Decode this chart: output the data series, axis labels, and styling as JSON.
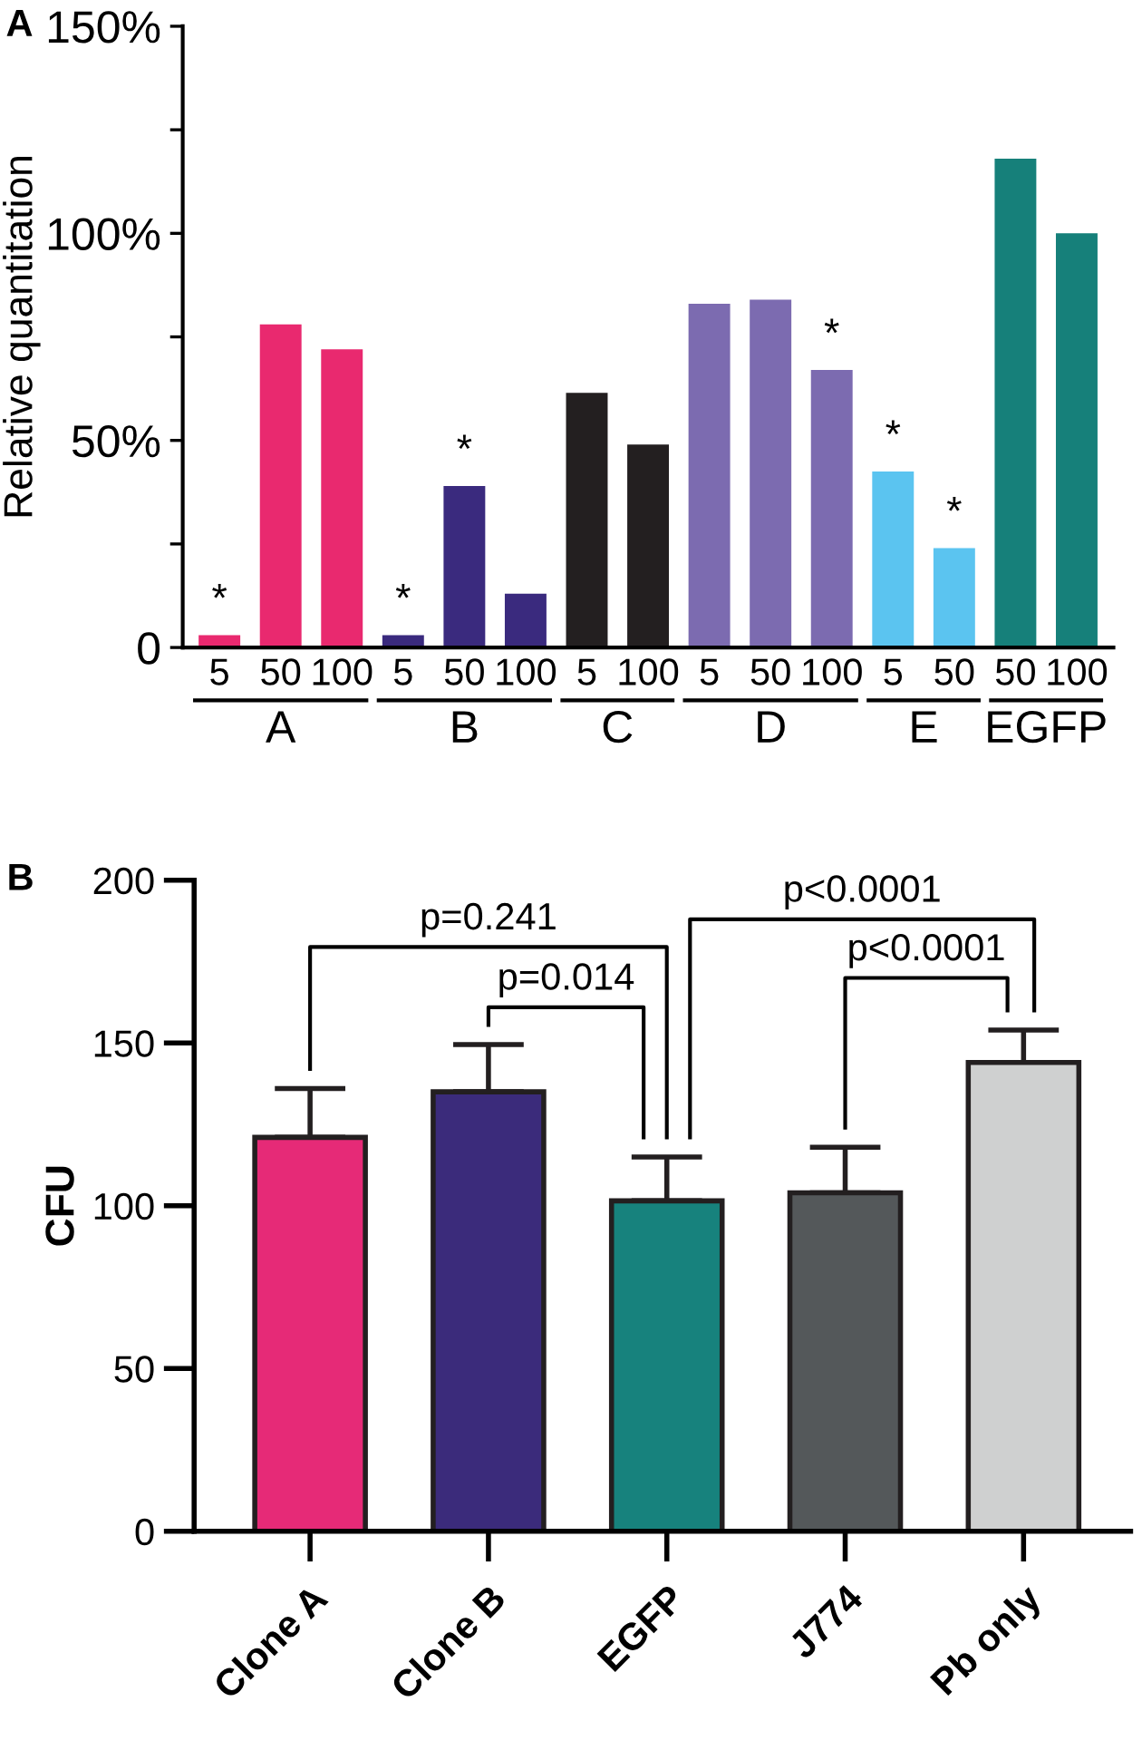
{
  "chart_data": [
    {
      "type": "bar",
      "title": "A",
      "ylabel": "Relative quantitation",
      "categories": [
        "5",
        "50",
        "100",
        "5",
        "50",
        "100",
        "5",
        "100",
        "5",
        "50",
        "100",
        "5",
        "50",
        "50",
        "100"
      ],
      "values": [
        3,
        78,
        72,
        3,
        39,
        13,
        61.5,
        49,
        83,
        84,
        67,
        42.5,
        24,
        118,
        100
      ],
      "colors": [
        "#e9296f",
        "#e9296f",
        "#e9296f",
        "#3a2a7e",
        "#3a2a7e",
        "#3a2a7e",
        "#231f20",
        "#231f20",
        "#7c6bb0",
        "#7c6bb0",
        "#7c6bb0",
        "#5bc4f0",
        "#5bc4f0",
        "#16807a",
        "#16807a"
      ],
      "value_labels": [
        "*",
        null,
        null,
        "*",
        "*",
        null,
        null,
        null,
        null,
        null,
        "*",
        "*",
        "*",
        null,
        null
      ],
      "annotations": [
        "A",
        "B",
        "C",
        "D",
        "E",
        "EGFP"
      ],
      "ylim": [
        0,
        150
      ],
      "yticks": [
        0,
        {
          "value": 25,
          "label": null
        },
        {
          "value": 50,
          "label": "50%"
        },
        {
          "value": 75,
          "label": null
        },
        {
          "value": 100,
          "label": "100%"
        },
        {
          "value": 125,
          "label": null
        },
        {
          "value": 150,
          "label": "150%"
        }
      ],
      "grid": false,
      "legend": false
    },
    {
      "type": "bar",
      "title": "B",
      "ylabel": "CFU",
      "categories": [
        "Clone A",
        "Clone B",
        "EGFP",
        "J774",
        "Pb only"
      ],
      "values": [
        121,
        135,
        101.5,
        104,
        144
      ],
      "colors": [
        "#e62a77",
        "#3b2b7b",
        "#17827d",
        "#54585a",
        "#cfd0d0"
      ],
      "errors": [
        [
          121,
          136
        ],
        [
          135,
          149.5
        ],
        [
          101.5,
          115
        ],
        [
          104,
          118
        ],
        [
          144,
          154
        ]
      ],
      "annotations": [
        "p=0.241",
        "p=0.014",
        "p<0.0001",
        "p<0.0001"
      ],
      "ylim": [
        0,
        200
      ],
      "yticks": [
        0,
        50,
        100,
        150,
        200
      ],
      "grid": false,
      "legend": false
    }
  ]
}
